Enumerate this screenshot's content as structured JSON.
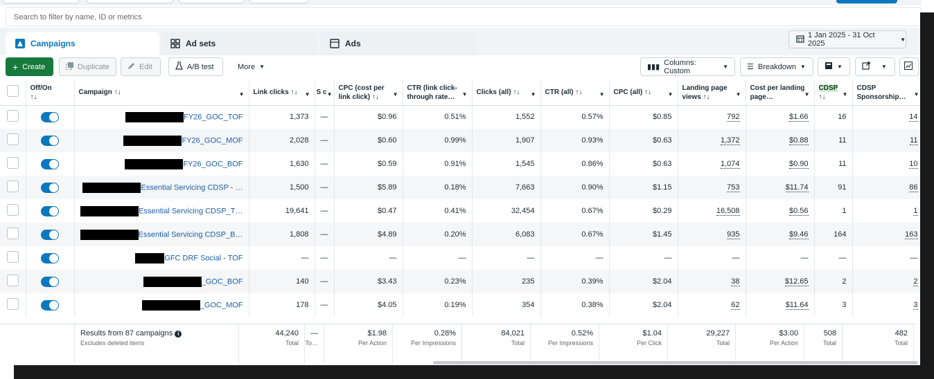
{
  "search": {
    "placeholder": "Search to filter by name, ID or metrics"
  },
  "tabs": [
    {
      "label": "Campaigns",
      "icon": "campaign-icon"
    },
    {
      "label": "Ad sets",
      "icon": "adsets-grid-icon"
    },
    {
      "label": "Ads",
      "icon": "ad-square-icon"
    }
  ],
  "date_range": "1 Jan 2025 - 31 Oct 2025",
  "toolbar": {
    "create": "Create",
    "duplicate": "Duplicate",
    "edit": "Edit",
    "ab_test": "A/B test",
    "more": "More",
    "columns": "Columns: Custom",
    "breakdown": "Breakdown"
  },
  "columns": [
    {
      "label": "Off/On",
      "sort": "↑↓"
    },
    {
      "label": "Campaign",
      "sort": "↑↓"
    },
    {
      "label": "Link clicks",
      "sort": "↑↓"
    },
    {
      "label": "S c",
      "sort": ""
    },
    {
      "label": "CPC (cost per link click)",
      "sort": "↑↓"
    },
    {
      "label": "CTR (link click-through rate…",
      "sort": ""
    },
    {
      "label": "Clicks (all)",
      "sort": "↑↓"
    },
    {
      "label": "CTR (all)",
      "sort": "↑↓"
    },
    {
      "label": "CPC (all)",
      "sort": "↑↓"
    },
    {
      "label": "Landing page views",
      "sort": "↑↓"
    },
    {
      "label": "Cost per landing page…",
      "sort": ""
    },
    {
      "label": "CDSP",
      "sort": "↑↓"
    },
    {
      "label": "CDSP Sponsorship…",
      "sort": ""
    }
  ],
  "rows": [
    {
      "redact_w": 84,
      "name": "FY26_GOC_TOF",
      "link_clicks": "1,373",
      "s": "—",
      "cpc_link": "$0.96",
      "ctr_link": "0.51%",
      "clicks_all": "1,552",
      "ctr_all": "0.57%",
      "cpc_all": "$0.85",
      "lpv": "792",
      "cost_lpv": "$1.66",
      "cdsp": "16",
      "cdsp_sp": "14"
    },
    {
      "redact_w": 84,
      "name": "FY26_GOC_MOF",
      "link_clicks": "2,028",
      "s": "—",
      "cpc_link": "$0.60",
      "ctr_link": "0.99%",
      "clicks_all": "1,907",
      "ctr_all": "0.93%",
      "cpc_all": "$0.63",
      "lpv": "1,372",
      "cost_lpv": "$0.88",
      "cdsp": "11",
      "cdsp_sp": "11"
    },
    {
      "redact_w": 84,
      "name": "FY26_GOC_BOF",
      "link_clicks": "1,630",
      "s": "—",
      "cpc_link": "$0.59",
      "ctr_link": "0.91%",
      "clicks_all": "1,545",
      "ctr_all": "0.86%",
      "cpc_all": "$0.63",
      "lpv": "1,074",
      "cost_lpv": "$0.90",
      "cdsp": "11",
      "cdsp_sp": "10"
    },
    {
      "redact_w": 84,
      "name": "Essential Servicing CDSP - …",
      "link_clicks": "1,500",
      "s": "—",
      "cpc_link": "$5.89",
      "ctr_link": "0.18%",
      "clicks_all": "7,663",
      "ctr_all": "0.90%",
      "cpc_all": "$1.15",
      "lpv": "753",
      "cost_lpv": "$11.74",
      "cdsp": "91",
      "cdsp_sp": "86"
    },
    {
      "redact_w": 84,
      "name": "Essential Servicing CDSP_T…",
      "link_clicks": "19,641",
      "s": "—",
      "cpc_link": "$0.47",
      "ctr_link": "0.41%",
      "clicks_all": "32,454",
      "ctr_all": "0.67%",
      "cpc_all": "$0.29",
      "lpv": "16,508",
      "cost_lpv": "$0.56",
      "cdsp": "1",
      "cdsp_sp": "1"
    },
    {
      "redact_w": 84,
      "name": "Essential Servicing CDSP_B…",
      "link_clicks": "1,808",
      "s": "—",
      "cpc_link": "$4.89",
      "ctr_link": "0.20%",
      "clicks_all": "6,083",
      "ctr_all": "0.67%",
      "cpc_all": "$1.45",
      "lpv": "935",
      "cost_lpv": "$9.46",
      "cdsp": "164",
      "cdsp_sp": "163"
    },
    {
      "redact_w": 42,
      "name": "GFC DRF Social - TOF",
      "link_clicks": "—",
      "s": "—",
      "cpc_link": "—",
      "ctr_link": "—",
      "clicks_all": "—",
      "ctr_all": "—",
      "cpc_all": "—",
      "lpv": "—",
      "cost_lpv": "—",
      "cdsp": "—",
      "cdsp_sp": "—"
    },
    {
      "redact_w": 84,
      "name": "_GOC_BOF",
      "link_clicks": "140",
      "s": "—",
      "cpc_link": "$3.43",
      "ctr_link": "0.23%",
      "clicks_all": "235",
      "ctr_all": "0.39%",
      "cpc_all": "$2.04",
      "lpv": "38",
      "cost_lpv": "$12.65",
      "cdsp": "2",
      "cdsp_sp": "2"
    },
    {
      "redact_w": 84,
      "name": "_GOC_MOF",
      "link_clicks": "178",
      "s": "—",
      "cpc_link": "$4.05",
      "ctr_link": "0.19%",
      "clicks_all": "354",
      "ctr_all": "0.38%",
      "cpc_all": "$2.04",
      "lpv": "62",
      "cost_lpv": "$11.64",
      "cdsp": "3",
      "cdsp_sp": "3"
    }
  ],
  "footer": {
    "results_label": "Results from 87 campaigns",
    "results_sub": "Excludes deleted items",
    "cells": [
      {
        "value": "44,240",
        "sub": "Total"
      },
      {
        "value": "—",
        "sub": "To…"
      },
      {
        "value": "$1.98",
        "sub": "Per Action"
      },
      {
        "value": "0.28%",
        "sub": "Per Impressions"
      },
      {
        "value": "84,021",
        "sub": "Total"
      },
      {
        "value": "0.52%",
        "sub": "Per Impressions"
      },
      {
        "value": "$1.04",
        "sub": "Per Click"
      },
      {
        "value": "29,227",
        "sub": "Total"
      },
      {
        "value": "$3.00",
        "sub": "Per Action"
      },
      {
        "value": "508",
        "sub": "Total"
      },
      {
        "value": "482",
        "sub": "Total"
      }
    ]
  }
}
